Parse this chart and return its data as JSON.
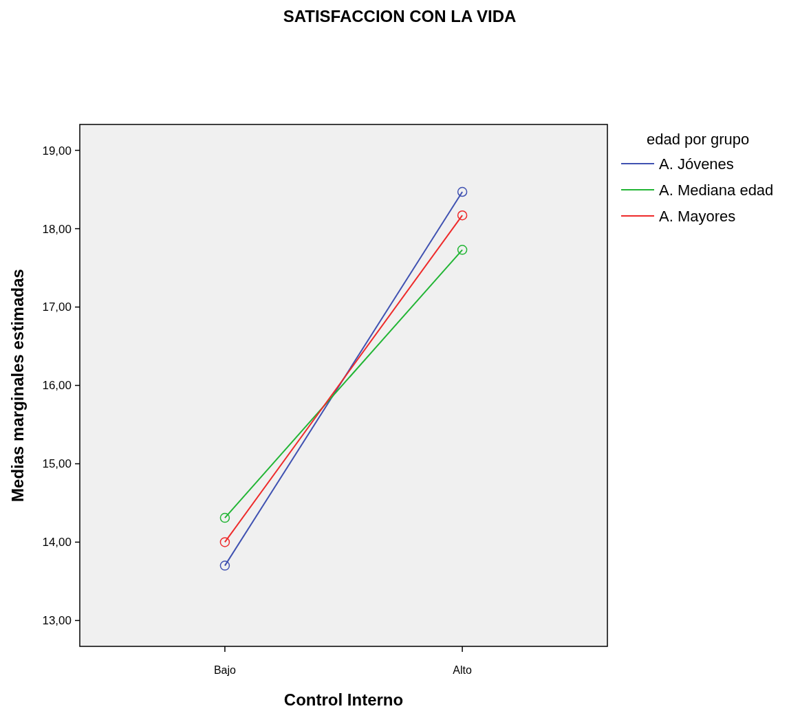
{
  "chart_data": {
    "type": "line",
    "title": "SATISFACCION CON LA VIDA",
    "xlabel": "Control Interno",
    "ylabel": "Medias marginales estimadas",
    "legend_title": "edad por grupo",
    "categories": [
      "Bajo",
      "Alto"
    ],
    "series": [
      {
        "name": "A. Jóvenes",
        "color": "#3f51b1",
        "values": [
          13.7,
          18.47
        ]
      },
      {
        "name": "A. Mediana edad",
        "color": "#21b534",
        "values": [
          14.31,
          17.73
        ]
      },
      {
        "name": "A. Mayores",
        "color": "#ee2a2a",
        "values": [
          14.0,
          18.17
        ]
      }
    ],
    "ylim": [
      12.67,
      19.33
    ],
    "yticks": [
      {
        "value": 13,
        "label": "13,00"
      },
      {
        "value": 14,
        "label": "14,00"
      },
      {
        "value": 15,
        "label": "15,00"
      },
      {
        "value": 16,
        "label": "16,00"
      },
      {
        "value": 17,
        "label": "17,00"
      },
      {
        "value": 18,
        "label": "18,00"
      },
      {
        "value": 19,
        "label": "19,00"
      }
    ],
    "legend": "top right",
    "marker": "circle",
    "line_style": "solid",
    "grid": false
  }
}
